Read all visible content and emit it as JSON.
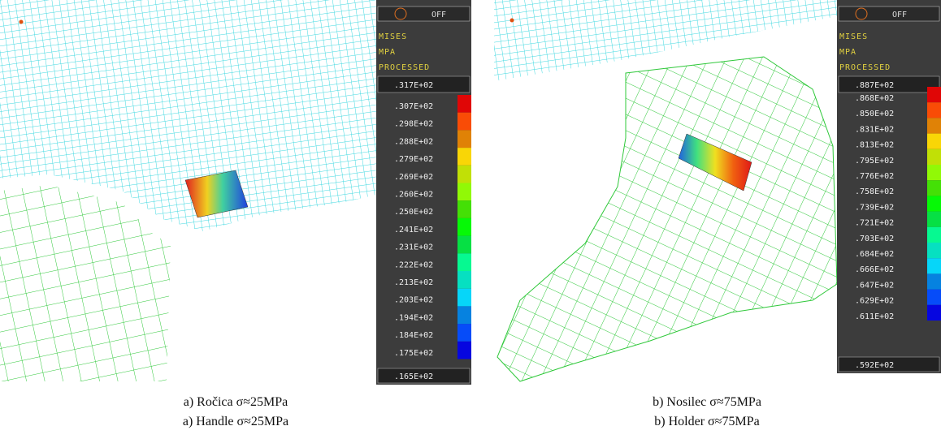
{
  "panels": [
    {
      "legend": {
        "toggle": "OFF",
        "quantity": "MISES",
        "unit": "MPA",
        "state": "PROCESSED",
        "max": ".317E+02",
        "levels": [
          ".307E+02",
          ".298E+02",
          ".288E+02",
          ".279E+02",
          ".269E+02",
          ".260E+02",
          ".250E+02",
          ".241E+02",
          ".231E+02",
          ".222E+02",
          ".213E+02",
          ".203E+02",
          ".194E+02",
          ".184E+02",
          ".175E+02"
        ],
        "min": ".165E+02"
      },
      "caption": [
        "a) Ročica σ≈25MPa",
        "a) Handle σ≈25MPa"
      ]
    },
    {
      "legend": {
        "toggle": "OFF",
        "quantity": "MISES",
        "unit": "MPA",
        "state": "PROCESSED",
        "max": ".887E+02",
        "levels": [
          ".868E+02",
          ".850E+02",
          ".831E+02",
          ".813E+02",
          ".795E+02",
          ".776E+02",
          ".758E+02",
          ".739E+02",
          ".721E+02",
          ".703E+02",
          ".684E+02",
          ".666E+02",
          ".647E+02",
          ".629E+02",
          ".611E+02"
        ],
        "min": ".592E+02"
      },
      "caption": [
        "b) Nosilec σ≈75MPa",
        "b) Holder σ≈75MPa"
      ]
    }
  ]
}
